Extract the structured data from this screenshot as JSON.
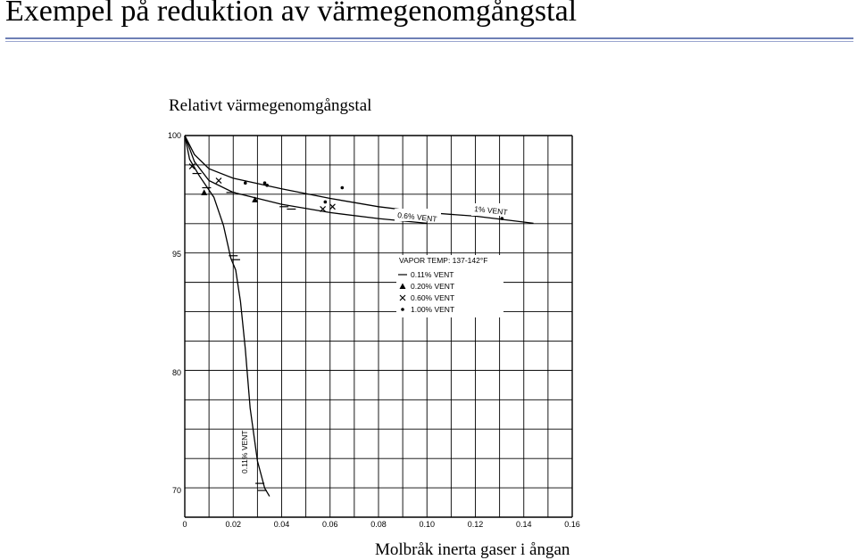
{
  "slide": {
    "title": "Exempel på reduktion av värmegenomgångstal",
    "chart_caption": "Relativt värmegenomgångstal",
    "bottom_caption": "Molbråk inerta gaser i ångan"
  },
  "chart_data": {
    "type": "line",
    "title": "",
    "xlabel": "Molbråk inerta gaser i ångan",
    "ylabel": "Relativt värmegenomgångstal",
    "x_ticks": [
      "0",
      "0.02",
      "0.04",
      "0.06",
      "0.08",
      "0.10",
      "0.12",
      "0.14",
      "0.16"
    ],
    "y_ticks": [
      "70",
      "80",
      "95",
      "100"
    ],
    "xlim": [
      0,
      0.16
    ],
    "grid": true,
    "legend_title": "VAPOR TEMP: 137-142°F",
    "legend": [
      {
        "label": "0.11% VENT",
        "marker": "dash"
      },
      {
        "label": "0.20% VENT",
        "marker": "triangle"
      },
      {
        "label": "0.60% VENT",
        "marker": "x"
      },
      {
        "label": "1.00% VENT",
        "marker": "dot"
      }
    ],
    "curve_labels": [
      "0.6% VENT",
      "1% VENT",
      "0.11% VENT"
    ],
    "series": [
      {
        "name": "0.11% VENT",
        "points": [
          [
            0.0,
            100
          ],
          [
            0.002,
            99.0
          ],
          [
            0.006,
            98.3
          ],
          [
            0.012,
            97.4
          ],
          [
            0.016,
            96.2
          ],
          [
            0.019,
            94.5
          ],
          [
            0.021,
            93.0
          ],
          [
            0.023,
            89
          ],
          [
            0.025,
            83
          ],
          [
            0.027,
            77
          ],
          [
            0.03,
            72.5
          ],
          [
            0.033,
            70.2
          ],
          [
            0.035,
            69.5
          ]
        ]
      },
      {
        "name": "0.6% VENT",
        "points": [
          [
            0.0,
            100
          ],
          [
            0.004,
            98.9
          ],
          [
            0.01,
            98.1
          ],
          [
            0.02,
            97.6
          ],
          [
            0.04,
            97.1
          ],
          [
            0.06,
            96.75
          ],
          [
            0.08,
            96.5
          ],
          [
            0.1,
            96.3
          ]
        ]
      },
      {
        "name": "1% VENT",
        "points": [
          [
            0.0,
            100
          ],
          [
            0.004,
            99.2
          ],
          [
            0.01,
            98.6
          ],
          [
            0.02,
            98.2
          ],
          [
            0.04,
            97.75
          ],
          [
            0.06,
            97.35
          ],
          [
            0.08,
            97.0
          ],
          [
            0.1,
            96.75
          ],
          [
            0.12,
            96.6
          ],
          [
            0.144,
            96.3
          ]
        ]
      }
    ],
    "points": {
      "dash": [
        [
          0.005,
          98.4
        ],
        [
          0.009,
          97.8
        ],
        [
          0.02,
          94.8
        ],
        [
          0.021,
          94.3
        ],
        [
          0.031,
          70.6
        ],
        [
          0.032,
          70.0
        ],
        [
          0.019,
          97.6
        ],
        [
          0.041,
          97.0
        ],
        [
          0.044,
          96.9
        ]
      ],
      "triangle": [
        [
          0.008,
          97.6
        ],
        [
          0.029,
          97.3
        ]
      ],
      "x": [
        [
          0.003,
          98.7
        ],
        [
          0.014,
          98.1
        ],
        [
          0.057,
          96.9
        ],
        [
          0.061,
          97.0
        ]
      ],
      "dot": [
        [
          0.025,
          98.0
        ],
        [
          0.033,
          98.0
        ],
        [
          0.034,
          97.9
        ],
        [
          0.065,
          97.8
        ],
        [
          0.058,
          97.2
        ],
        [
          0.131,
          96.5
        ]
      ]
    }
  }
}
